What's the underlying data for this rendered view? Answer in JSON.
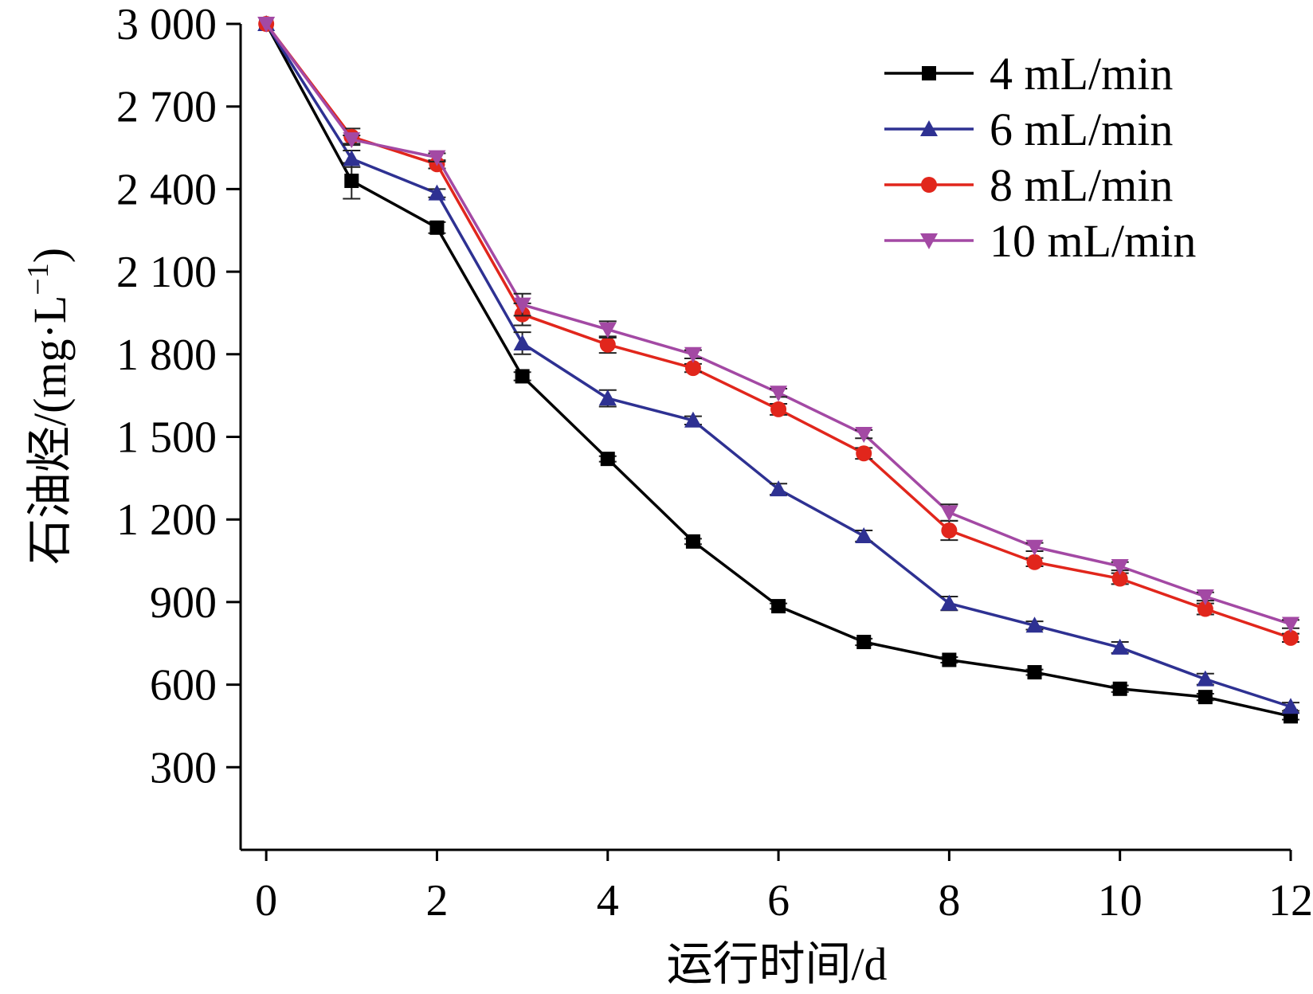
{
  "chart_data": {
    "type": "line",
    "xlabel": "运行时间/d",
    "ylabel": {
      "prefix": "石油烃/(mg·L",
      "superscript": "−1",
      "suffix": ")"
    },
    "xlim": [
      -0.3,
      12
    ],
    "ylim": [
      0,
      3000
    ],
    "x_ticks": [
      0,
      2,
      4,
      6,
      8,
      10,
      12
    ],
    "x_tick_labels": [
      "0",
      "2",
      "4",
      "6",
      "8",
      "10",
      "12"
    ],
    "y_ticks": [
      300,
      600,
      900,
      1200,
      1500,
      1800,
      2100,
      2400,
      2700,
      3000
    ],
    "y_tick_labels": [
      "300",
      "600",
      "900",
      "1 200",
      "1 500",
      "1 800",
      "2 100",
      "2 400",
      "2 700",
      "3 000"
    ],
    "legend_position": "top-right",
    "x": [
      0,
      1,
      2,
      3,
      4,
      5,
      6,
      7,
      8,
      9,
      10,
      11,
      12
    ],
    "series": [
      {
        "name": "4 mL/min",
        "color": "#000000",
        "marker": "square",
        "values": [
          3000,
          2430,
          2260,
          1720,
          1420,
          1120,
          885,
          755,
          690,
          645,
          585,
          555,
          485
        ],
        "errors": [
          0,
          65,
          20,
          15,
          10,
          10,
          10,
          12,
          10,
          10,
          12,
          12,
          12
        ]
      },
      {
        "name": "6 mL/min",
        "color": "#2e3192",
        "marker": "triangle-up",
        "values": [
          3000,
          2510,
          2385,
          1840,
          1640,
          1560,
          1310,
          1140,
          895,
          815,
          735,
          620,
          520
        ],
        "errors": [
          0,
          30,
          15,
          40,
          30,
          15,
          20,
          20,
          25,
          15,
          20,
          20,
          15
        ]
      },
      {
        "name": "8 mL/min",
        "color": "#e1261c",
        "marker": "circle",
        "values": [
          3000,
          2590,
          2490,
          1945,
          1835,
          1750,
          1600,
          1440,
          1160,
          1045,
          985,
          875,
          770
        ],
        "errors": [
          0,
          30,
          15,
          40,
          30,
          15,
          20,
          20,
          35,
          15,
          20,
          20,
          15
        ]
      },
      {
        "name": "10 mL/min",
        "color": "#a349a4",
        "marker": "triangle-down",
        "values": [
          3000,
          2580,
          2515,
          1980,
          1890,
          1800,
          1660,
          1510,
          1225,
          1100,
          1030,
          920,
          820
        ],
        "errors": [
          0,
          15,
          15,
          40,
          30,
          15,
          15,
          15,
          30,
          15,
          15,
          15,
          15
        ]
      }
    ]
  }
}
